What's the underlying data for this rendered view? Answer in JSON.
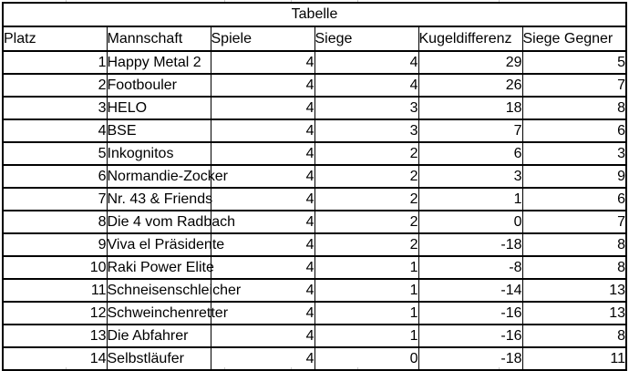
{
  "table": {
    "title": "Tabelle",
    "columns": [
      "Platz",
      "Mannschaft",
      "Spiele",
      "Siege",
      "Kugeldifferenz",
      "Siege Gegner"
    ],
    "rows": [
      [
        1,
        "Happy Metal 2",
        4,
        4,
        29,
        5
      ],
      [
        2,
        "Footbouler",
        4,
        4,
        26,
        7
      ],
      [
        3,
        "HELO",
        4,
        3,
        18,
        8
      ],
      [
        4,
        "BSE",
        4,
        3,
        7,
        6
      ],
      [
        5,
        "Inkognitos",
        4,
        2,
        6,
        3
      ],
      [
        6,
        "Normandie-Zocker",
        4,
        2,
        3,
        9
      ],
      [
        7,
        "Nr. 43 & Friends",
        4,
        2,
        1,
        6
      ],
      [
        8,
        "Die 4 vom Radbach",
        4,
        2,
        0,
        7
      ],
      [
        9,
        "Viva el Präsidente",
        4,
        2,
        -18,
        8
      ],
      [
        10,
        "Raki Power Elite",
        4,
        1,
        -8,
        8
      ],
      [
        11,
        "Schneisenschleicher",
        4,
        1,
        -14,
        13
      ],
      [
        12,
        "Schweinchenretter",
        4,
        1,
        -16,
        13
      ],
      [
        13,
        "Die Abfahrer",
        4,
        1,
        -16,
        8
      ],
      [
        14,
        "Selbstläufer",
        4,
        0,
        -18,
        11
      ]
    ]
  },
  "colors": {
    "border": "#000000",
    "background": "#ffffff",
    "text": "#000000",
    "gridline_remnant": "#c9c9c9"
  }
}
